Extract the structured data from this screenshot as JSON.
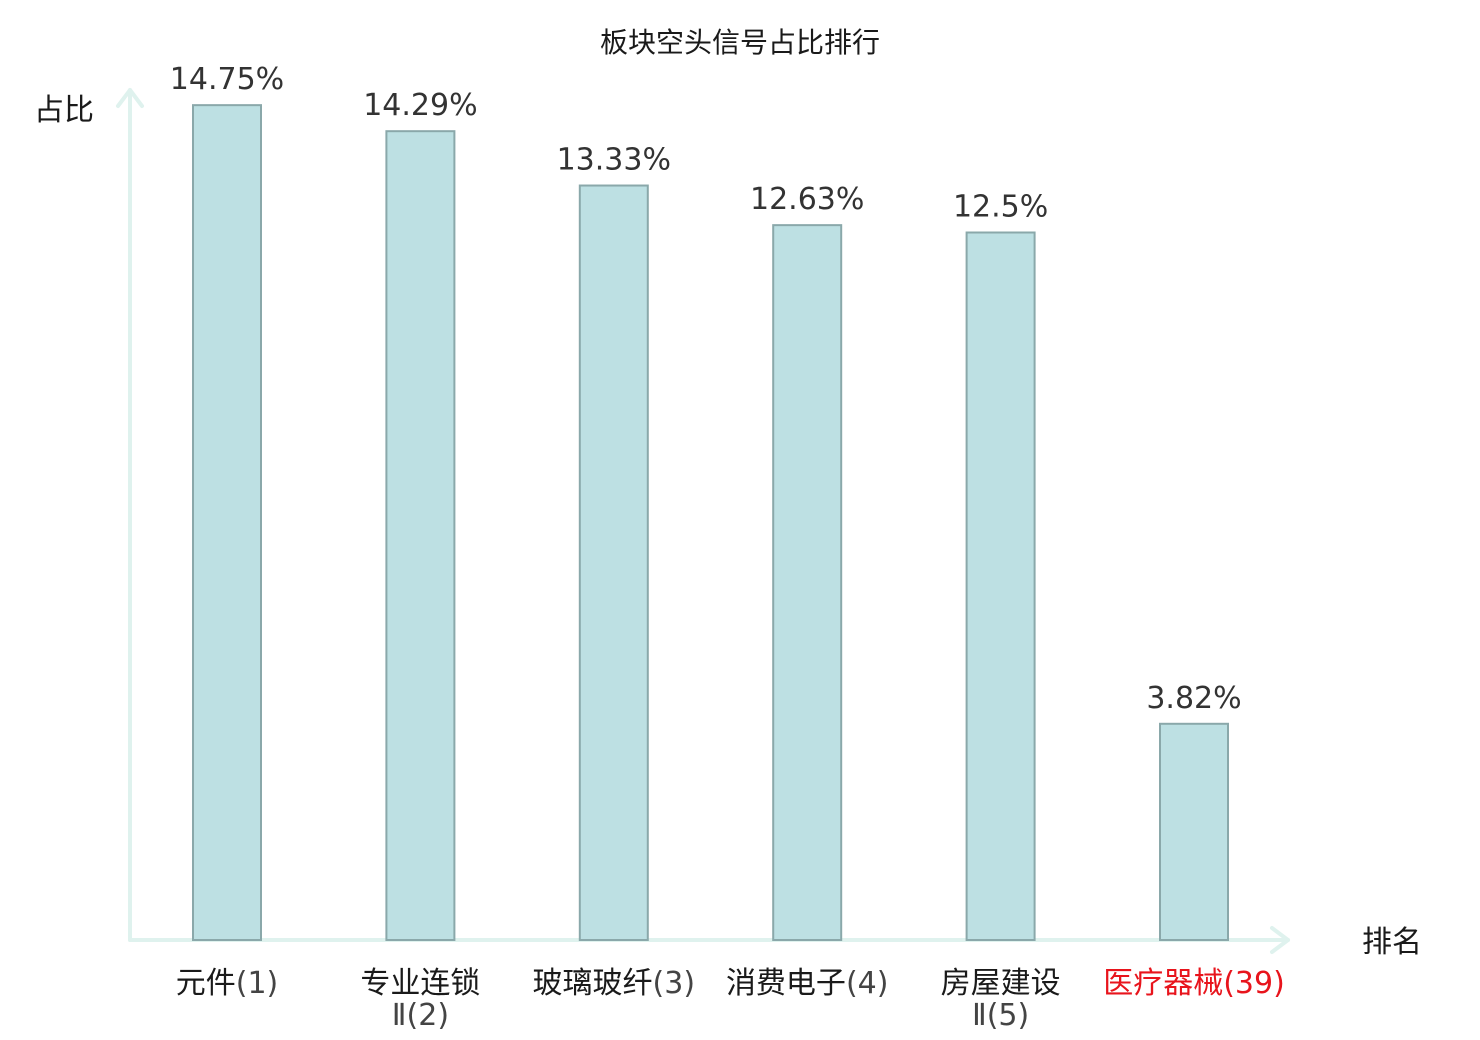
{
  "chart_data": {
    "type": "bar",
    "title": "板块空头信号占比排行",
    "ylabel": "占比",
    "xlabel": "排名",
    "ylim": [
      0,
      16
    ],
    "grid": false,
    "categories": [
      {
        "name": "元件",
        "name2": "",
        "rank": "(1)",
        "highlight": false
      },
      {
        "name": "专业连锁",
        "name2": "Ⅱ",
        "rank": "(2)",
        "highlight": false
      },
      {
        "name": "玻璃玻纤",
        "name2": "",
        "rank": "(3)",
        "highlight": false
      },
      {
        "name": "消费电子",
        "name2": "",
        "rank": "(4)",
        "highlight": false
      },
      {
        "name": "房屋建设",
        "name2": "Ⅱ",
        "rank": "(5)",
        "highlight": false
      },
      {
        "name": "医疗器械",
        "name2": "",
        "rank": "(39)",
        "highlight": true
      }
    ],
    "values": [
      14.75,
      14.29,
      13.33,
      12.63,
      12.5,
      3.82
    ],
    "value_labels": [
      "14.75%",
      "14.29%",
      "13.33%",
      "12.63%",
      "12.5%",
      "3.82%"
    ],
    "colors": {
      "bar_fill": "#bde0e3",
      "bar_stroke": "#8aa8aa",
      "axis": "#dff2ee",
      "highlight": "#e8141c",
      "text": "#1a1a1a"
    }
  }
}
